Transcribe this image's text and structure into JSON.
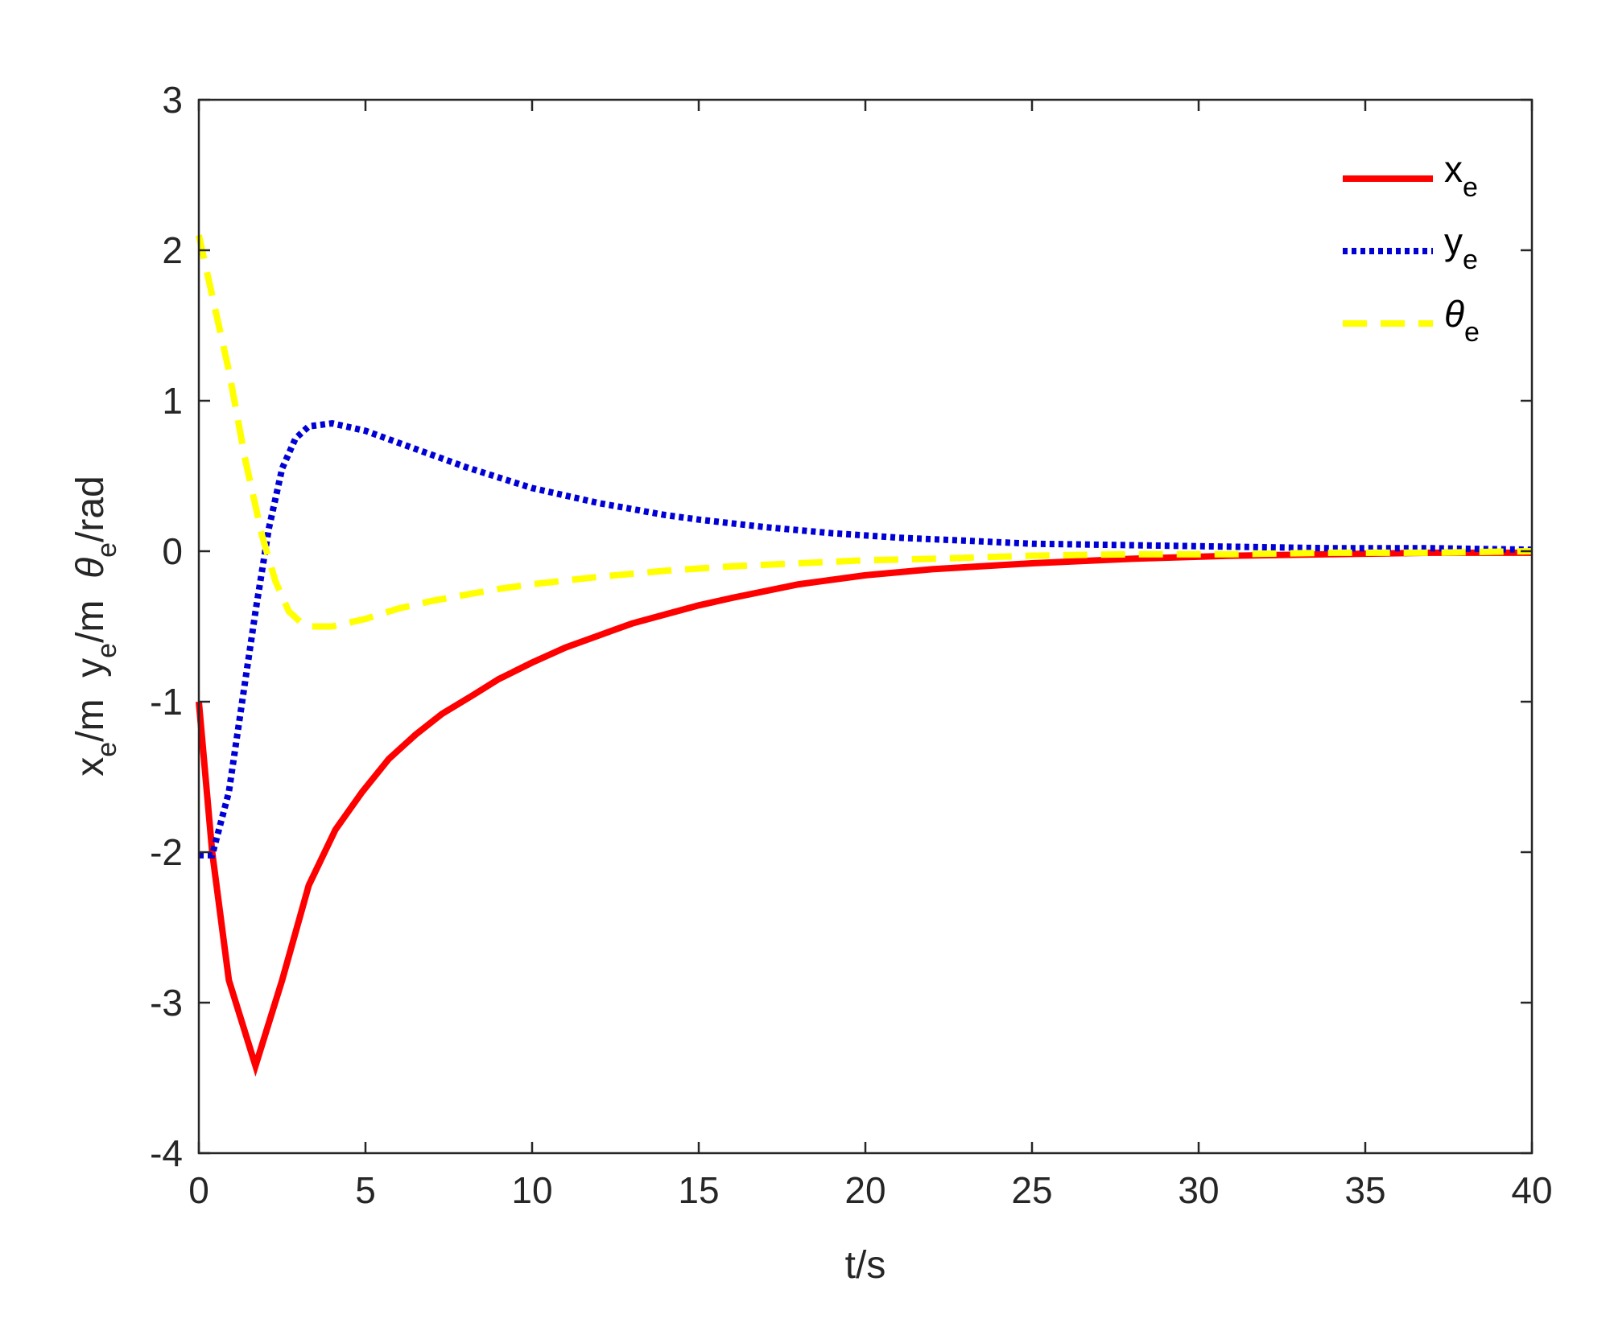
{
  "chart_data": {
    "type": "line",
    "xlabel": "t/s",
    "ylabel": {
      "parts": [
        {
          "main": "x",
          "sub": "e",
          "after": "/m  "
        },
        {
          "main": "y",
          "sub": "e",
          "after": "/m  "
        },
        {
          "main": "θ",
          "sub": "e",
          "after": "/rad"
        }
      ]
    },
    "xlim": [
      0,
      40
    ],
    "ylim": [
      -4,
      3
    ],
    "xticks": [
      0,
      5,
      10,
      15,
      20,
      25,
      30,
      35,
      40
    ],
    "yticks": [
      -4,
      -3,
      -2,
      -1,
      0,
      1,
      2,
      3
    ],
    "xtick_labels": [
      "0",
      "5",
      "10",
      "15",
      "20",
      "25",
      "30",
      "35",
      "40"
    ],
    "ytick_labels": [
      "-4",
      "-3",
      "-2",
      "-1",
      "0",
      "1",
      "2",
      "3"
    ],
    "grid": false,
    "legend_position": "top-right",
    "series": [
      {
        "name_main": "x",
        "name_sub": "e",
        "color": "#ff0000",
        "style": "solid",
        "x": [
          0,
          0.4,
          0.9,
          1.7,
          2.5,
          3.3,
          4.1,
          4.9,
          5.7,
          6.5,
          7.3,
          8.2,
          9,
          10,
          11,
          12,
          13,
          14,
          15,
          16,
          18,
          20,
          22,
          25,
          28,
          31,
          34,
          37,
          40
        ],
        "y": [
          -1.0,
          -2.0,
          -2.85,
          -3.42,
          -2.85,
          -2.22,
          -1.85,
          -1.6,
          -1.38,
          -1.22,
          -1.08,
          -0.96,
          -0.85,
          -0.74,
          -0.64,
          -0.56,
          -0.48,
          -0.42,
          -0.36,
          -0.31,
          -0.22,
          -0.16,
          -0.12,
          -0.08,
          -0.05,
          -0.03,
          -0.02,
          -0.01,
          -0.01
        ]
      },
      {
        "name_main": "y",
        "name_sub": "e",
        "color": "#0000d6",
        "style": "dotted",
        "x": [
          0,
          0.4,
          0.9,
          1.3,
          1.7,
          2.1,
          2.5,
          2.9,
          3.3,
          4,
          5,
          6,
          7,
          8,
          9,
          10,
          11,
          12,
          13,
          14,
          15,
          17,
          19,
          21,
          23,
          25,
          28,
          31,
          34,
          37,
          40
        ],
        "y": [
          -2.02,
          -2.02,
          -1.6,
          -1.0,
          -0.4,
          0.15,
          0.55,
          0.75,
          0.83,
          0.85,
          0.8,
          0.72,
          0.64,
          0.56,
          0.49,
          0.42,
          0.37,
          0.32,
          0.28,
          0.24,
          0.21,
          0.16,
          0.12,
          0.09,
          0.07,
          0.05,
          0.04,
          0.03,
          0.02,
          0.02,
          0.01
        ]
      },
      {
        "name_main": "θ",
        "name_sub": "e",
        "color": "#ffff00",
        "style": "dashed",
        "x": [
          0,
          0.3,
          0.9,
          1.4,
          1.9,
          2.3,
          2.7,
          3.1,
          3.4,
          4,
          5,
          6,
          7,
          8,
          9,
          10,
          12,
          14,
          16,
          18,
          20,
          22,
          25,
          28,
          31,
          34,
          37,
          40
        ],
        "y": [
          2.1,
          1.8,
          1.2,
          0.6,
          0.1,
          -0.2,
          -0.4,
          -0.48,
          -0.5,
          -0.5,
          -0.45,
          -0.38,
          -0.33,
          -0.29,
          -0.25,
          -0.22,
          -0.17,
          -0.13,
          -0.1,
          -0.08,
          -0.06,
          -0.05,
          -0.03,
          -0.02,
          -0.02,
          -0.01,
          -0.01,
          0.0
        ]
      }
    ]
  }
}
